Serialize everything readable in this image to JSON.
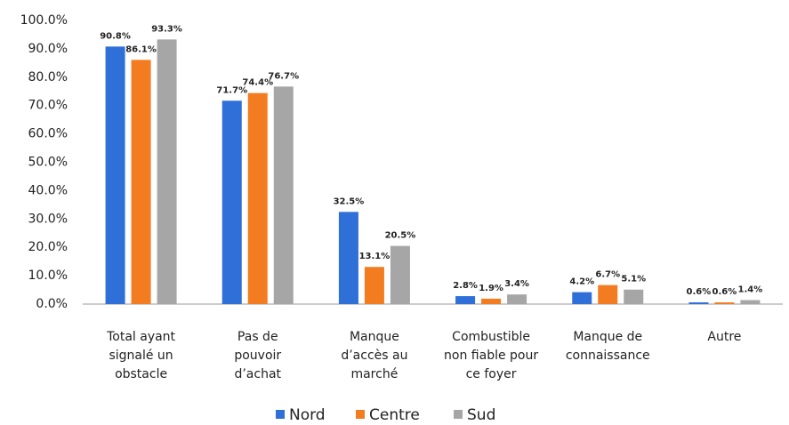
{
  "chart_data": {
    "type": "bar",
    "categories": [
      "Total ayant\nsignalé un\nobstacle",
      "Pas de\npouvoir\nd’achat",
      "Manque\nd’accès au\nmarché",
      "Combustible\nnon fiable pour\nce foyer",
      "Manque de\nconnaissance",
      "Autre"
    ],
    "series": [
      {
        "name": "Nord",
        "color": "#2f6fd8",
        "values": [
          90.8,
          71.7,
          32.5,
          2.8,
          4.2,
          0.6
        ],
        "value_labels": [
          "90.8%",
          "71.7%",
          "32.5%",
          "2.8%",
          "4.2%",
          "0.6%"
        ]
      },
      {
        "name": "Centre",
        "color": "#f47c20",
        "values": [
          86.1,
          74.4,
          13.1,
          1.9,
          6.7,
          0.6
        ],
        "value_labels": [
          "86.1%",
          "74.4%",
          "13.1%",
          "1.9%",
          "6.7%",
          "0.6%"
        ]
      },
      {
        "name": "Sud",
        "color": "#a6a6a6",
        "values": [
          93.3,
          76.7,
          20.5,
          3.4,
          5.1,
          1.4
        ],
        "value_labels": [
          "93.3%",
          "76.7%",
          "20.5%",
          "3.4%",
          "5.1%",
          "1.4%"
        ]
      }
    ],
    "ylim": [
      0,
      100
    ],
    "yticks": [
      {
        "value": 0,
        "label": "0.0%"
      },
      {
        "value": 10,
        "label": "10.0%"
      },
      {
        "value": 20,
        "label": "20.0%"
      },
      {
        "value": 30,
        "label": "30.0%"
      },
      {
        "value": 40,
        "label": "40.0%"
      },
      {
        "value": 50,
        "label": "50.0%"
      },
      {
        "value": 60,
        "label": "60.0%"
      },
      {
        "value": 70,
        "label": "70.0%"
      },
      {
        "value": 80,
        "label": "80.0%"
      },
      {
        "value": 90,
        "label": "90.0%"
      },
      {
        "value": 100,
        "label": "100.0%"
      }
    ],
    "grid": false,
    "legend": "bottom"
  }
}
